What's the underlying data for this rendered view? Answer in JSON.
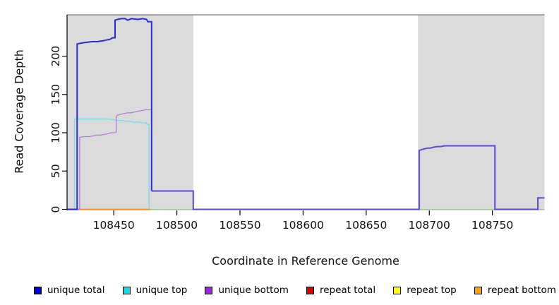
{
  "figure": {
    "x_axis_title": "Coordinate in Reference Genome",
    "y_axis_title": "Read Coverage Depth"
  },
  "chart_data": {
    "type": "line",
    "title": "",
    "xlabel": "Coordinate in Reference Genome",
    "ylabel": "Read Coverage Depth",
    "xlim": [
      108413,
      108791.3
    ],
    "ylim": [
      0,
      254
    ],
    "grid": false,
    "legend_position": "bottom",
    "x_ticks": [
      108450,
      108500,
      108550,
      108600,
      108650,
      108700,
      108750
    ],
    "y_ticks": [
      0,
      50,
      100,
      150,
      200
    ],
    "plot_background": "#ffffff",
    "shaded_region_color": "#dbdbdb",
    "background_regions": [
      {
        "x0": 108413,
        "x1": 108513
      },
      {
        "x0": 108691,
        "x1": 108791.3
      }
    ],
    "legend": [
      {
        "label": "unique total",
        "color": "#0000EE"
      },
      {
        "label": "unique top",
        "color": "#00E5EE"
      },
      {
        "label": "unique bottom",
        "color": "#A020F0"
      },
      {
        "label": "repeat total",
        "color": "#E00000"
      },
      {
        "label": "repeat top",
        "color": "#FFFF00"
      },
      {
        "label": "repeat bottom",
        "color": "#FFA500"
      }
    ],
    "series": [
      {
        "name": "baseline-green-artifact",
        "color": "#93CE93",
        "width": 1.3,
        "points": [
          [
            108478,
            0
          ],
          [
            108791.3,
            0
          ]
        ]
      },
      {
        "name": "repeat bottom",
        "color": "#FF8C1A",
        "width": 1.7,
        "points": [
          [
            108413,
            0
          ],
          [
            108479,
            0
          ]
        ]
      },
      {
        "name": "unique top",
        "color": "#6FE3EA",
        "width": 1.5,
        "points": [
          [
            108413,
            0
          ],
          [
            108419,
            0
          ],
          [
            108419,
            118
          ],
          [
            108447,
            118
          ],
          [
            108449,
            117
          ],
          [
            108451,
            117
          ],
          [
            108453,
            116
          ],
          [
            108457,
            116
          ],
          [
            108459,
            115
          ],
          [
            108463,
            115
          ],
          [
            108465,
            114
          ],
          [
            108470,
            114
          ],
          [
            108472,
            113
          ],
          [
            108476,
            113
          ],
          [
            108476,
            111
          ],
          [
            108478,
            111
          ],
          [
            108478,
            0
          ]
        ]
      },
      {
        "name": "unique bottom",
        "color": "#B77BD9",
        "width": 1.3,
        "points": [
          [
            108413,
            0
          ],
          [
            108423,
            0
          ],
          [
            108423,
            94
          ],
          [
            108427,
            95
          ],
          [
            108431,
            95
          ],
          [
            108434,
            96
          ],
          [
            108437,
            97
          ],
          [
            108440,
            97
          ],
          [
            108443,
            98
          ],
          [
            108446,
            99
          ],
          [
            108448,
            100
          ],
          [
            108450,
            100
          ],
          [
            108452,
            101
          ],
          [
            108452,
            121
          ],
          [
            108453,
            123
          ],
          [
            108455,
            124
          ],
          [
            108458,
            125
          ],
          [
            108461,
            126
          ],
          [
            108464,
            126
          ],
          [
            108466,
            127
          ],
          [
            108469,
            128
          ],
          [
            108472,
            129
          ],
          [
            108475,
            130
          ],
          [
            108480,
            130
          ],
          [
            108480,
            24
          ]
        ]
      },
      {
        "name": "unique total + unique bottom overlap",
        "color": "#5D47DF",
        "width": 2,
        "points": [
          [
            108480,
            24
          ],
          [
            108513,
            24
          ],
          [
            108513,
            0
          ],
          [
            108692,
            0
          ],
          [
            108692,
            77
          ],
          [
            108694,
            78
          ],
          [
            108696,
            79
          ],
          [
            108699,
            80
          ],
          [
            108701,
            80
          ],
          [
            108703,
            81
          ],
          [
            108706,
            82
          ],
          [
            108709,
            82
          ],
          [
            108712,
            83
          ],
          [
            108718,
            83
          ],
          [
            108752,
            83
          ],
          [
            108752,
            0
          ],
          [
            108786,
            0
          ],
          [
            108786,
            15
          ],
          [
            108791.3,
            15
          ]
        ]
      },
      {
        "name": "unique total",
        "color": "#2B2BD9",
        "width": 2,
        "points": [
          [
            108413,
            0
          ],
          [
            108421,
            0
          ],
          [
            108421,
            216
          ],
          [
            108424,
            217
          ],
          [
            108428,
            218
          ],
          [
            108433,
            219
          ],
          [
            108437,
            219
          ],
          [
            108441,
            220
          ],
          [
            108444,
            221
          ],
          [
            108447,
            222
          ],
          [
            108449,
            224
          ],
          [
            108451,
            224
          ],
          [
            108451,
            247
          ],
          [
            108453,
            248
          ],
          [
            108456,
            249
          ],
          [
            108459,
            249
          ],
          [
            108461,
            247
          ],
          [
            108464,
            249
          ],
          [
            108469,
            248
          ],
          [
            108473,
            249
          ],
          [
            108476,
            248
          ],
          [
            108477,
            245
          ],
          [
            108480,
            245
          ],
          [
            108480,
            24
          ]
        ]
      }
    ]
  }
}
